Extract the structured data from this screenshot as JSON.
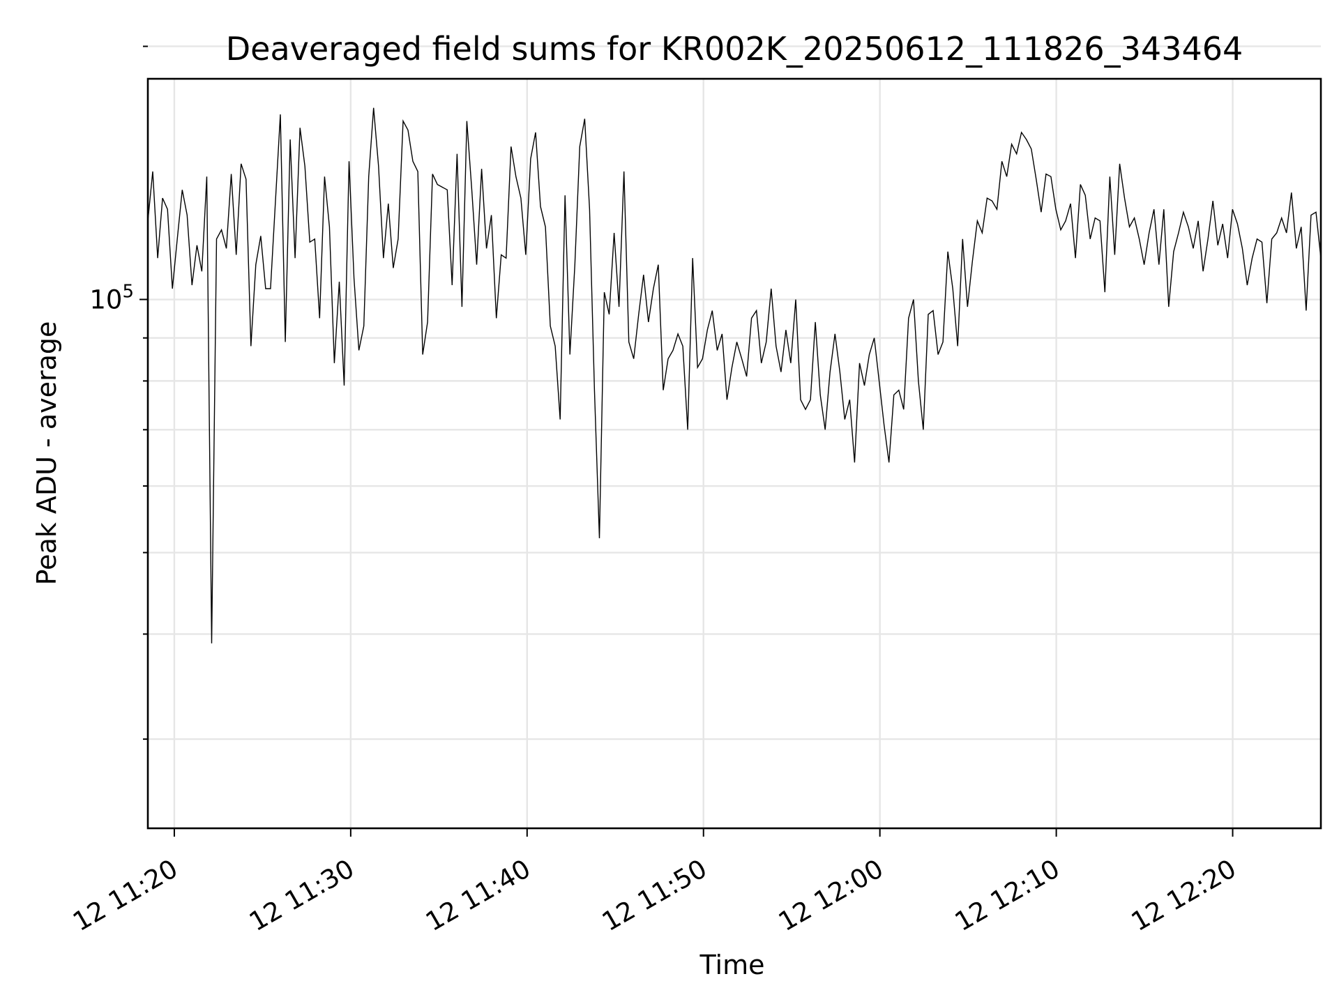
{
  "chart_data": {
    "type": "line",
    "title": "Deaveraged field sums for KR002K_20250612_111826_343464",
    "xlabel": "Time",
    "ylabel": "Peak ADU - average",
    "y_scale": "log",
    "ylim": [
      23500,
      183000
    ],
    "xlim": [
      "2025-06-12 11:18:30",
      "2025-06-12 12:25:00"
    ],
    "x_ticks": [
      {
        "value": "2025-06-12 11:20",
        "label": "12 11:20"
      },
      {
        "value": "2025-06-12 11:30",
        "label": "12 11:30"
      },
      {
        "value": "2025-06-12 11:40",
        "label": "12 11:40"
      },
      {
        "value": "2025-06-12 11:50",
        "label": "12 11:50"
      },
      {
        "value": "2025-06-12 12:00",
        "label": "12 12:00"
      },
      {
        "value": "2025-06-12 12:10",
        "label": "12 12:10"
      },
      {
        "value": "2025-06-12 12:20",
        "label": "12 12:20"
      }
    ],
    "y_major_tick": {
      "value": 100000,
      "base": "10",
      "exponent": "5"
    },
    "y_minor_ticks": [
      30000,
      40000,
      50000,
      60000,
      70000,
      80000,
      90000,
      200000
    ],
    "grid": true,
    "line_color": "#000000",
    "series": [
      {
        "start": "2025-06-12 11:18:30",
        "end": "2025-06-12 12:25:00",
        "y": [
          124000,
          142000,
          112000,
          132000,
          128000,
          103000,
          118000,
          135000,
          126000,
          104000,
          116000,
          108000,
          140000,
          39000,
          118000,
          121000,
          115000,
          141000,
          113000,
          145000,
          139000,
          88000,
          110000,
          119000,
          103000,
          103000,
          131000,
          166000,
          89000,
          155000,
          112000,
          160000,
          144000,
          117000,
          118000,
          95000,
          140000,
          122000,
          84000,
          105000,
          79000,
          146000,
          106000,
          87000,
          93000,
          140000,
          169000,
          144000,
          112000,
          130000,
          109000,
          118000,
          163000,
          159000,
          146000,
          142000,
          86000,
          94000,
          141000,
          137000,
          136000,
          135000,
          104000,
          149000,
          98000,
          163000,
          135000,
          110000,
          143000,
          115000,
          126000,
          95000,
          113000,
          112000,
          152000,
          140000,
          132000,
          113000,
          147000,
          158000,
          129000,
          122000,
          93000,
          88000,
          72000,
          133000,
          86000,
          110000,
          152000,
          164000,
          128000,
          78000,
          52000,
          102000,
          96000,
          120000,
          98000,
          142000,
          89000,
          85000,
          96000,
          107000,
          94000,
          103000,
          110000,
          78000,
          85000,
          87000,
          91000,
          88000,
          70000,
          112000,
          83000,
          85000,
          92000,
          97000,
          87000,
          91000,
          76000,
          83000,
          89000,
          85000,
          81000,
          95000,
          97000,
          84000,
          89000,
          103000,
          88000,
          82000,
          92000,
          84000,
          100000,
          76000,
          74000,
          76000,
          94000,
          77000,
          70000,
          82000,
          91000,
          82000,
          72000,
          76000,
          64000,
          84000,
          79000,
          86000,
          90000,
          80000,
          71000,
          64000,
          77000,
          78000,
          74000,
          95000,
          100000,
          80000,
          70000,
          96000,
          97000,
          86000,
          89000,
          114000,
          103000,
          88000,
          118000,
          98000,
          111000,
          124000,
          120000,
          132000,
          131000,
          128000,
          146000,
          140000,
          153000,
          149000,
          158000,
          155000,
          151000,
          139000,
          127000,
          141000,
          140000,
          128000,
          121000,
          124000,
          130000,
          112000,
          137000,
          133000,
          118000,
          125000,
          124000,
          102000,
          140000,
          113000,
          145000,
          132000,
          122000,
          125000,
          118000,
          110000,
          120000,
          128000,
          110000,
          128000,
          98000,
          114000,
          120000,
          127000,
          122000,
          115000,
          124000,
          108000,
          118000,
          131000,
          116000,
          123000,
          112000,
          128000,
          123000,
          115000,
          104000,
          112000,
          118000,
          117000,
          99000,
          118000,
          120000,
          125000,
          120000,
          134000,
          115000,
          122000,
          97000,
          126000,
          127000,
          112000
        ]
      }
    ]
  }
}
